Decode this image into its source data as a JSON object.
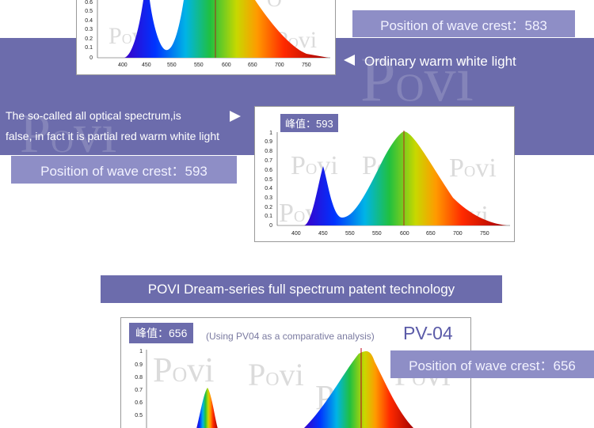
{
  "section1": {
    "crest_label": "Position of wave crest：583",
    "warm_label": "Ordinary warm white light",
    "x_ticks": [
      "400",
      "450",
      "550",
      "550",
      "600",
      "650",
      "700",
      "750"
    ],
    "y_ticks": [
      "0.6",
      "0.5",
      "0.4",
      "0.3",
      "0.2",
      "0.1",
      "0"
    ]
  },
  "section2": {
    "caption_line1": "The so-called all optical spectrum,is",
    "caption_line2": "false, in fact it is partial red warm white light",
    "crest_label": "Position of wave crest：593",
    "peak_tag": "峰值：593",
    "x_ticks": [
      "400",
      "450",
      "550",
      "550",
      "600",
      "650",
      "700",
      "750"
    ],
    "y_ticks": [
      "1",
      "0.9",
      "0.8",
      "0.7",
      "0.6",
      "0.5",
      "0.4",
      "0.3",
      "0.2",
      "0.1",
      "0"
    ]
  },
  "section3": {
    "banner": "POVI Dream-series full spectrum patent technology",
    "peak_tag": "峰值：656",
    "comparison_note": "(Using PV04 as a comparative analysis)",
    "model": "PV-04",
    "crest_label": "Position of wave crest：656",
    "y_ticks": [
      "1",
      "0.9",
      "0.8",
      "0.7",
      "0.6",
      "0.5"
    ]
  },
  "watermark_brand": "POVi",
  "colors": {
    "band": "#6c6cac",
    "label": "#8e8ec6",
    "model_text": "#5b5ba8",
    "crest_line": "#c0001a"
  },
  "icons": [
    "arrow-left-icon",
    "arrow-right-icon"
  ]
}
